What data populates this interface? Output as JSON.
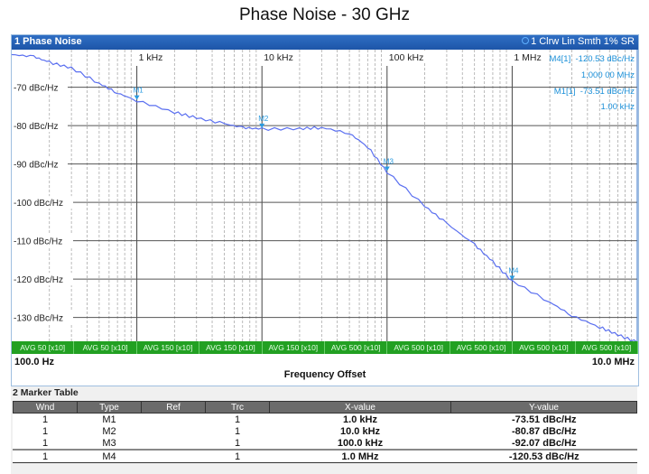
{
  "page_title": "Phase Noise - 30 GHz",
  "window": {
    "label": "1 Phase Noise",
    "trace_info": "1 Clrw Lin Smth 1% SR",
    "marker_info": [
      {
        "id": "M4[1]",
        "value": "-120.53 dBc/Hz",
        "freq": "1.000 00 MHz"
      },
      {
        "id": "M1[1]",
        "value": "-73.51 dBc/Hz",
        "freq": "1.00 kHz"
      }
    ],
    "avg_labels": [
      "AVG 50 [x10]",
      "AVG 50 [x10]",
      "AVG 150 [x10]",
      "AVG 150 [x10]",
      "AVG 150 [x10]",
      "AVG 500 [x10]",
      "AVG 500 [x10]",
      "AVG 500 [x10]",
      "AVG 500 [x10]",
      "AVG 500 [x10]"
    ],
    "start_freq": "100.0 Hz",
    "stop_freq": "10.0 MHz",
    "x_axis_label": "Frequency Offset"
  },
  "chart_data": {
    "type": "line",
    "title": "Phase Noise - 30 GHz",
    "xlabel": "Frequency Offset",
    "ylabel": "dBc/Hz",
    "x_scale": "log",
    "xlim": [
      100,
      10000000
    ],
    "ylim": [
      -137,
      -60
    ],
    "x_tick_labels": [
      "1 kHz",
      "10 kHz",
      "100 kHz",
      "1 MHz"
    ],
    "y_tick_labels": [
      "-70 dBc/Hz",
      "-80 dBc/Hz",
      "-90 dBc/Hz",
      "-100 dBc/Hz",
      "-110 dBc/Hz",
      "-120 dBc/Hz",
      "-130 dBc/Hz"
    ],
    "grid": true,
    "series": [
      {
        "name": "Trace 1",
        "color": "#5a6ff0",
        "x": [
          100,
          150,
          200,
          300,
          500,
          700,
          1000,
          2000,
          3000,
          5000,
          7000,
          10000,
          20000,
          30000,
          50000,
          70000,
          100000,
          200000,
          300000,
          500000,
          700000,
          1000000,
          2000000,
          3000000,
          5000000,
          7000000,
          10000000
        ],
        "y": [
          -61.5,
          -62,
          -63.5,
          -65,
          -69,
          -71.5,
          -73.5,
          -76.5,
          -78,
          -79.5,
          -80.5,
          -80.9,
          -80.8,
          -80.5,
          -82,
          -85.5,
          -92.1,
          -101,
          -105.5,
          -111,
          -115.5,
          -120.5,
          -126,
          -129.5,
          -132.5,
          -134.5,
          -136.5
        ]
      }
    ],
    "markers": [
      {
        "name": "M1",
        "x": 1000,
        "y": -73.51
      },
      {
        "name": "M2",
        "x": 10000,
        "y": -80.87
      },
      {
        "name": "M3",
        "x": 100000,
        "y": -92.07
      },
      {
        "name": "M4",
        "x": 1000000,
        "y": -120.53
      }
    ]
  },
  "marker_table": {
    "title": "2 Marker Table",
    "columns": [
      "Wnd",
      "Type",
      "Ref",
      "Trc",
      "X-value",
      "Y-value"
    ],
    "rows": [
      {
        "wnd": "1",
        "type": "M1",
        "ref": "",
        "trc": "1",
        "x": "1.0 kHz",
        "y": "-73.51 dBc/Hz"
      },
      {
        "wnd": "1",
        "type": "M2",
        "ref": "",
        "trc": "1",
        "x": "10.0 kHz",
        "y": "-80.87 dBc/Hz"
      },
      {
        "wnd": "1",
        "type": "M3",
        "ref": "",
        "trc": "1",
        "x": "100.0 kHz",
        "y": "-92.07 dBc/Hz"
      },
      {
        "wnd": "1",
        "type": "M4",
        "ref": "",
        "trc": "1",
        "x": "1.0 MHz",
        "y": "-120.53 dBc/Hz"
      }
    ]
  }
}
